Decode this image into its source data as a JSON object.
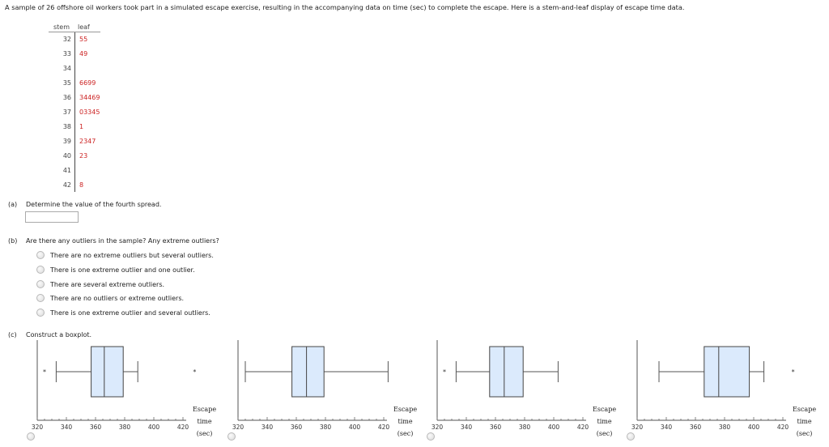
{
  "intro": "A sample of 26 offshore oil workers took part in a simulated escape exercise, resulting in the accompanying data on time (sec) to complete the escape. Here is a stem-and-leaf display of escape time data.",
  "stem_leaf": {
    "stem_header": "stem",
    "leaf_header": "leaf",
    "rows": [
      {
        "stem": "32",
        "leaf": "55"
      },
      {
        "stem": "33",
        "leaf": "49"
      },
      {
        "stem": "34",
        "leaf": ""
      },
      {
        "stem": "35",
        "leaf": "6699"
      },
      {
        "stem": "36",
        "leaf": "34469"
      },
      {
        "stem": "37",
        "leaf": "03345"
      },
      {
        "stem": "38",
        "leaf": "1"
      },
      {
        "stem": "39",
        "leaf": "2347"
      },
      {
        "stem": "40",
        "leaf": "23"
      },
      {
        "stem": "41",
        "leaf": ""
      },
      {
        "stem": "42",
        "leaf": "8"
      }
    ]
  },
  "part_a": {
    "label": "(a)",
    "text": "Determine the value of the fourth spread.",
    "value": ""
  },
  "part_b": {
    "label": "(b)",
    "text": "Are there any outliers in the sample? Any extreme outliers?",
    "options": [
      "There are no extreme outliers but several outliers.",
      "There is one extreme outlier and one outlier.",
      "There are several extreme outliers.",
      "There are no outliers or extreme outliers.",
      "There is one extreme outlier and several outliers."
    ]
  },
  "part_c": {
    "label": "(c)",
    "text": "Construct a boxplot."
  },
  "boxplot_axis": {
    "ticks": [
      "320",
      "340",
      "360",
      "380",
      "400",
      "420"
    ],
    "title_lines": [
      "Escape",
      "time",
      "(sec)"
    ],
    "min": 320,
    "max": 420
  },
  "boxplots": [
    {
      "whisker_low": 333,
      "q1": 357,
      "median": 366,
      "q3": 379,
      "whisker_high": 389,
      "outliers": [
        {
          "value": 325,
          "symbol": "*"
        },
        {
          "value": 428,
          "symbol": "*"
        }
      ]
    },
    {
      "whisker_low": 325,
      "q1": 357,
      "median": 367,
      "q3": 379,
      "whisker_high": 423,
      "outliers": []
    },
    {
      "whisker_low": 333,
      "q1": 356,
      "median": 366,
      "q3": 379,
      "whisker_high": 403,
      "outliers": [
        {
          "value": 325,
          "symbol": "*"
        }
      ]
    },
    {
      "whisker_low": 335,
      "q1": 366,
      "median": 376,
      "q3": 397,
      "whisker_high": 407,
      "outliers": [
        {
          "value": 427,
          "symbol": "*"
        }
      ]
    }
  ]
}
